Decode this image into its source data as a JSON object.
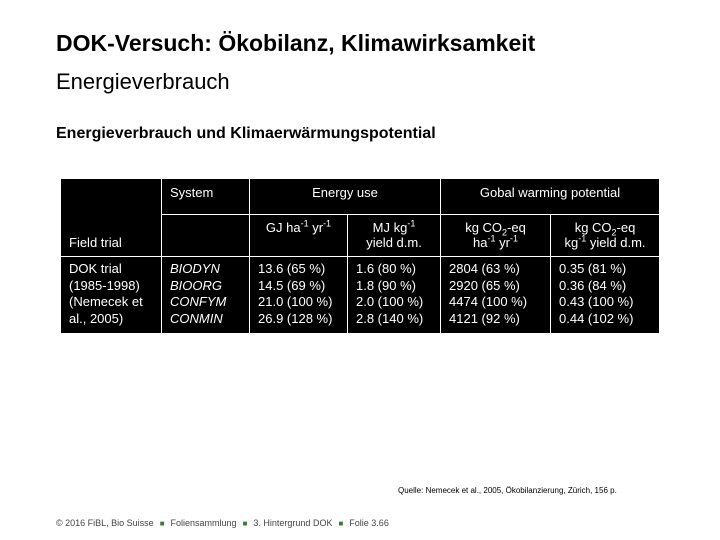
{
  "slide": {
    "title": "DOK-Versuch: Ökobilanz, Klimawirksamkeit",
    "subtitle": "Energieverbrauch",
    "section_heading": "Energieverbrauch und Klimaerwärmungspotential"
  },
  "table": {
    "headers": {
      "field_trial": "Field trial",
      "system": "System",
      "energy_use": "Energy use",
      "gwp": "Gobal warming potential"
    },
    "units": {
      "gj_line1": "GJ ha",
      "gj_sup1": "-1",
      "gj_mid": " yr",
      "gj_sup2": "-1",
      "mj_line1": "MJ kg",
      "mj_sup1": "-1",
      "mj_line2": "yield d.m.",
      "co2ha_line1a": "kg CO",
      "co2ha_sub": "2",
      "co2ha_line1b": "-eq",
      "co2ha_line2a": "ha",
      "co2ha_sup1": "-1",
      "co2ha_line2b": " yr",
      "co2ha_sup2": "-1",
      "co2kg_line1a": "kg CO",
      "co2kg_sub": "2",
      "co2kg_line1b": "-eq",
      "co2kg_line2a": "kg",
      "co2kg_sup1": "-1",
      "co2kg_line2b": " yield d.m."
    },
    "field_trial_lines": [
      "DOK trial",
      "(1985-1998)",
      "(Nemecek et",
      "al., 2005)"
    ],
    "rows": [
      {
        "system": "BIODYN",
        "gj": "13.6 (65 %)",
        "mj": "1.6 (80 %)",
        "co2_ha": "2804 (63 %)",
        "co2_kg": "0.35 (81 %)"
      },
      {
        "system": "BIOORG",
        "gj": "14.5 (69 %)",
        "mj": "1.8 (90 %)",
        "co2_ha": "2920 (65 %)",
        "co2_kg": "0.36 (84 %)"
      },
      {
        "system": "CONFYM",
        "gj": "21.0 (100 %)",
        "mj": "2.0 (100 %)",
        "co2_ha": "4474 (100 %)",
        "co2_kg": "0.43 (100 %)"
      },
      {
        "system": "CONMIN",
        "gj": "26.9 (128 %)",
        "mj": "2.8 (140 %)",
        "co2_ha": "4121 (92 %)",
        "co2_kg": "0.44 (102 %)"
      }
    ]
  },
  "source": "Quelle: Nemecek et al., 2005, Ökobilanzierung, Zürich, 156 p.",
  "footer": {
    "copyright": "© 2016 FiBL, Bio Suisse",
    "collection": "Foliensammlung",
    "chapter": "3. Hintergrund DOK",
    "slide": "Folie 3.66"
  }
}
